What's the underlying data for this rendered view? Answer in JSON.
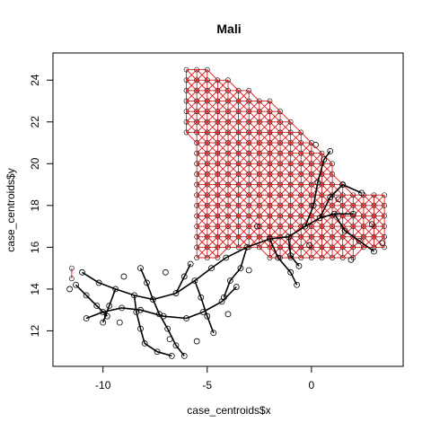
{
  "chart_data": {
    "type": "scatter",
    "title": "Mali",
    "xlabel": "case_centroids$x",
    "ylabel": "case_centroids$y",
    "xlim": [
      -12.4,
      4.4
    ],
    "ylim": [
      10.3,
      25.3
    ],
    "x_ticks": [
      -10,
      -5,
      0
    ],
    "y_ticks": [
      12,
      14,
      16,
      18,
      20,
      22,
      24
    ],
    "grid": false,
    "colors": {
      "grid_network": "#e41a1c",
      "road_network": "#000000",
      "points": "#000000"
    },
    "series": [
      {
        "kind": "grid-network",
        "color": "#e41a1c",
        "step": 0.5,
        "region": [
          [
            -6.25,
            24.75
          ],
          [
            -5.25,
            24.75
          ],
          [
            -1.0,
            22.5
          ],
          [
            0.2,
            21.2
          ],
          [
            0.6,
            20.6
          ],
          [
            1.2,
            20.2
          ],
          [
            1.5,
            19.3
          ],
          [
            2.0,
            18.75
          ],
          [
            3.75,
            18.75
          ],
          [
            3.75,
            15.75
          ],
          [
            1.0,
            15.25
          ],
          [
            -0.5,
            15.2
          ],
          [
            -2.5,
            15.6
          ],
          [
            -4.0,
            15.6
          ],
          [
            -5.75,
            15.25
          ],
          [
            -6.0,
            15.75
          ],
          [
            -5.75,
            16.5
          ],
          [
            -5.75,
            20.0
          ],
          [
            -6.25,
            22.25
          ]
        ],
        "extra_region": [
          [
            -11.75,
            15.25
          ],
          [
            -11.25,
            15.25
          ],
          [
            -11.25,
            14.25
          ],
          [
            -11.75,
            13.75
          ]
        ]
      },
      {
        "kind": "road-network",
        "color": "#000000",
        "paths": [
          [
            [
              -11.0,
              14.8
            ],
            [
              -10.2,
              14.3
            ],
            [
              -9.4,
              14.0
            ],
            [
              -8.5,
              13.7
            ],
            [
              -7.6,
              13.5
            ],
            [
              -6.5,
              13.8
            ],
            [
              -5.6,
              14.4
            ],
            [
              -4.8,
              15.0
            ],
            [
              -4.1,
              15.5
            ],
            [
              -3.1,
              16.0
            ],
            [
              -2.0,
              16.4
            ],
            [
              -1.1,
              16.5
            ],
            [
              -0.3,
              17.0
            ],
            [
              0.4,
              17.4
            ],
            [
              1.1,
              17.6
            ],
            [
              2.0,
              17.6
            ]
          ],
          [
            [
              -7.6,
              13.5
            ],
            [
              -7.3,
              12.8
            ],
            [
              -6.9,
              12.1
            ],
            [
              -6.5,
              11.3
            ],
            [
              -6.1,
              10.8
            ]
          ],
          [
            [
              -8.5,
              13.7
            ],
            [
              -8.4,
              12.9
            ],
            [
              -8.2,
              12.1
            ],
            [
              -8.0,
              11.4
            ]
          ],
          [
            [
              -10.8,
              12.6
            ],
            [
              -10.0,
              12.9
            ],
            [
              -9.1,
              13.1
            ],
            [
              -8.2,
              13.0
            ],
            [
              -7.1,
              12.7
            ],
            [
              -6.0,
              12.6
            ],
            [
              -5.2,
              12.9
            ],
            [
              -4.3,
              13.4
            ],
            [
              -3.6,
              14.1
            ]
          ],
          [
            [
              -5.6,
              14.4
            ],
            [
              -5.3,
              13.6
            ],
            [
              -5.0,
              12.7
            ],
            [
              -4.7,
              11.9
            ]
          ],
          [
            [
              -0.3,
              17.0
            ],
            [
              0.1,
              18.0
            ],
            [
              0.3,
              19.1
            ],
            [
              0.6,
              20.2
            ],
            [
              0.9,
              20.6
            ]
          ],
          [
            [
              -1.1,
              16.5
            ],
            [
              -1.0,
              15.6
            ],
            [
              -0.6,
              15.1
            ]
          ],
          [
            [
              1.1,
              17.6
            ],
            [
              1.6,
              16.8
            ],
            [
              2.3,
              16.3
            ],
            [
              3.0,
              15.8
            ]
          ],
          [
            [
              -3.1,
              16.0
            ],
            [
              -3.4,
              15.0
            ],
            [
              -3.9,
              14.4
            ],
            [
              -4.2,
              13.6
            ]
          ],
          [
            [
              -2.0,
              16.4
            ],
            [
              -1.6,
              15.5
            ],
            [
              -1.0,
              14.8
            ],
            [
              -0.7,
              14.2
            ]
          ],
          [
            [
              0.4,
              17.4
            ],
            [
              0.9,
              18.4
            ],
            [
              1.5,
              19.0
            ],
            [
              2.4,
              18.6
            ]
          ],
          [
            [
              -9.4,
              14.0
            ],
            [
              -9.7,
              13.2
            ],
            [
              -10.0,
              12.4
            ]
          ],
          [
            [
              -11.3,
              14.2
            ],
            [
              -10.8,
              13.7
            ],
            [
              -10.3,
              13.2
            ],
            [
              -9.8,
              12.7
            ]
          ],
          [
            [
              -7.6,
              13.5
            ],
            [
              -7.9,
              14.3
            ],
            [
              -8.2,
              15.0
            ]
          ],
          [
            [
              -6.5,
              13.8
            ],
            [
              -6.1,
              14.6
            ],
            [
              -5.8,
              15.2
            ]
          ],
          [
            [
              -8.0,
              11.4
            ],
            [
              -7.4,
              11.0
            ],
            [
              -6.7,
              10.8
            ]
          ]
        ],
        "points": [
          [
            -11.0,
            14.8
          ],
          [
            -10.2,
            14.3
          ],
          [
            -9.4,
            14.0
          ],
          [
            -8.5,
            13.7
          ],
          [
            -7.6,
            13.5
          ],
          [
            -6.5,
            13.8
          ],
          [
            -5.6,
            14.4
          ],
          [
            -4.8,
            15.0
          ],
          [
            -4.1,
            15.5
          ],
          [
            -3.1,
            16.0
          ],
          [
            -2.0,
            16.4
          ],
          [
            -1.1,
            16.5
          ],
          [
            -0.3,
            17.0
          ],
          [
            0.4,
            17.4
          ],
          [
            1.1,
            17.6
          ],
          [
            2.0,
            17.6
          ],
          [
            -7.3,
            12.8
          ],
          [
            -6.9,
            12.1
          ],
          [
            -6.5,
            11.3
          ],
          [
            -6.1,
            10.8
          ],
          [
            -8.4,
            12.9
          ],
          [
            -8.2,
            12.1
          ],
          [
            -8.0,
            11.4
          ],
          [
            -10.8,
            12.6
          ],
          [
            -10.0,
            12.9
          ],
          [
            -9.1,
            13.1
          ],
          [
            -8.2,
            13.0
          ],
          [
            -7.1,
            12.7
          ],
          [
            -6.0,
            12.6
          ],
          [
            -5.2,
            12.9
          ],
          [
            -4.3,
            13.4
          ],
          [
            -3.6,
            14.1
          ],
          [
            -5.3,
            13.6
          ],
          [
            -5.0,
            12.7
          ],
          [
            -4.7,
            11.9
          ],
          [
            0.1,
            18.0
          ],
          [
            0.3,
            19.1
          ],
          [
            0.6,
            20.2
          ],
          [
            0.9,
            20.6
          ],
          [
            -1.0,
            15.6
          ],
          [
            -0.6,
            15.1
          ],
          [
            1.6,
            16.8
          ],
          [
            2.3,
            16.3
          ],
          [
            3.0,
            15.8
          ],
          [
            -3.4,
            15.0
          ],
          [
            -3.9,
            14.4
          ],
          [
            -4.2,
            13.6
          ],
          [
            -1.6,
            15.5
          ],
          [
            -1.0,
            14.8
          ],
          [
            -0.7,
            14.2
          ],
          [
            0.9,
            18.4
          ],
          [
            1.5,
            19.0
          ],
          [
            2.4,
            18.6
          ],
          [
            -9.7,
            13.2
          ],
          [
            -10.0,
            12.4
          ],
          [
            -11.3,
            14.2
          ],
          [
            -10.8,
            13.7
          ],
          [
            -10.3,
            13.2
          ],
          [
            -9.8,
            12.7
          ],
          [
            -7.9,
            14.3
          ],
          [
            -8.2,
            15.0
          ],
          [
            -6.1,
            14.6
          ],
          [
            -5.8,
            15.2
          ],
          [
            -7.4,
            11.0
          ],
          [
            -6.7,
            10.8
          ],
          [
            -11.6,
            14.0
          ],
          [
            -9.0,
            14.6
          ],
          [
            -7.0,
            14.8
          ],
          [
            -6.8,
            11.6
          ],
          [
            -5.5,
            11.5
          ],
          [
            -9.2,
            12.4
          ],
          [
            -4.0,
            12.8
          ],
          [
            -3.0,
            14.9
          ],
          [
            -2.6,
            17.0
          ],
          [
            -0.1,
            16.1
          ],
          [
            1.9,
            15.4
          ],
          [
            3.4,
            16.2
          ],
          [
            2.9,
            17.1
          ],
          [
            1.3,
            18.3
          ],
          [
            0.2,
            20.9
          ]
        ]
      }
    ]
  }
}
